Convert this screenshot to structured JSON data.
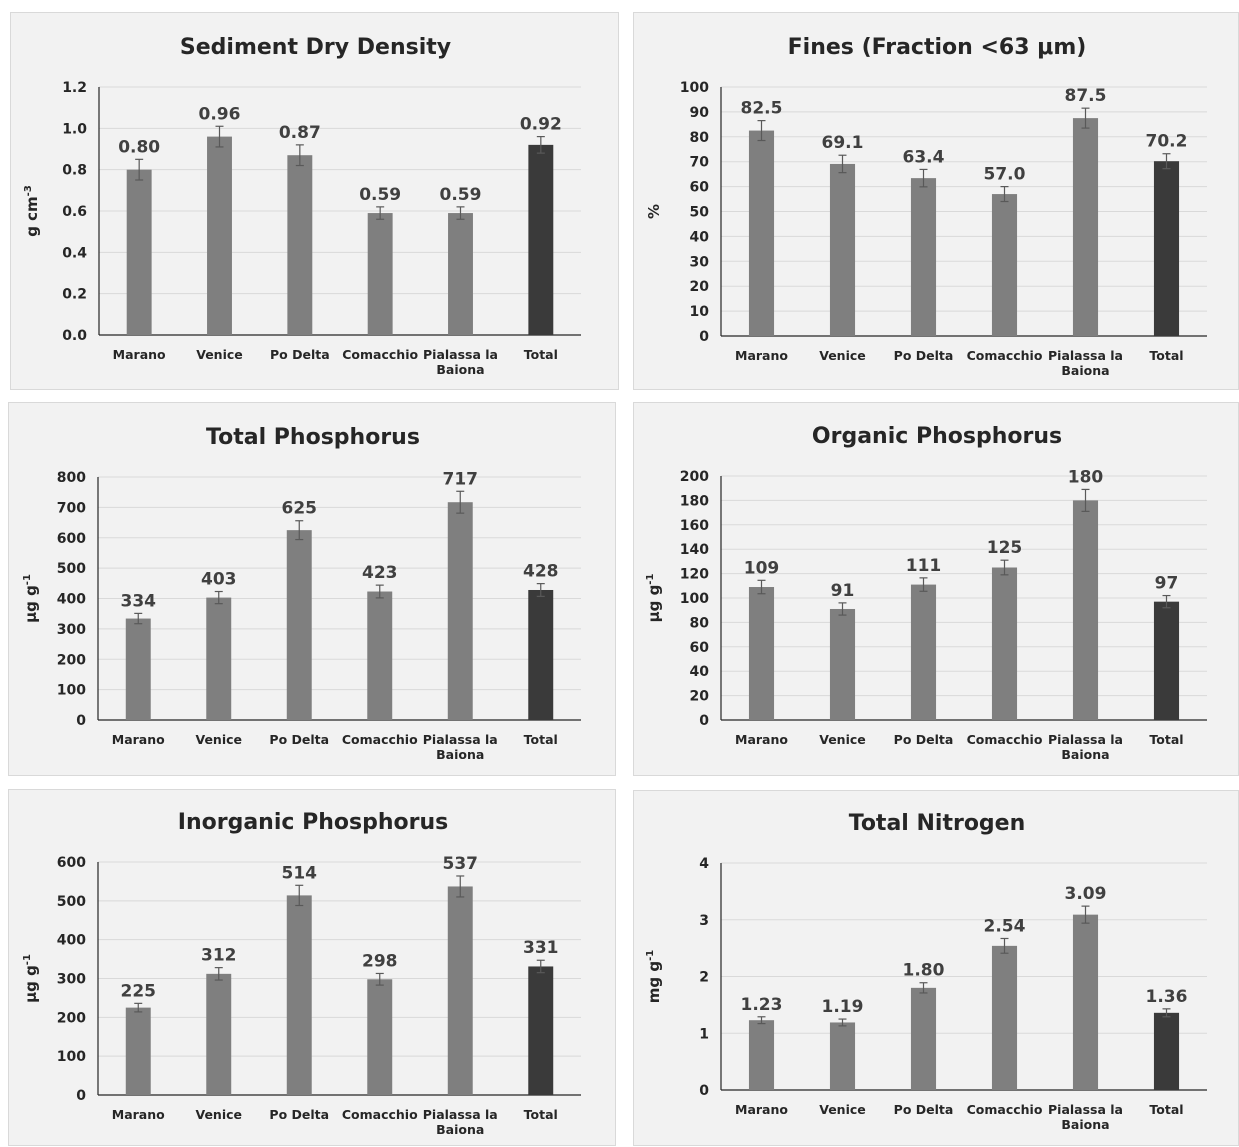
{
  "chart_data": [
    {
      "type": "bar",
      "title": "Sediment Dry Density",
      "ylabel": "g cm",
      "ylabel_sup": "-3",
      "categories": [
        [
          "Marano"
        ],
        [
          "Venice"
        ],
        [
          "Po Delta"
        ],
        [
          "Comacchio"
        ],
        [
          "Pialassa la",
          "Baiona"
        ],
        [
          "Total"
        ]
      ],
      "values": [
        0.8,
        0.96,
        0.87,
        0.59,
        0.59,
        0.92
      ],
      "value_labels": [
        "0.80",
        "0.96",
        "0.87",
        "0.59",
        "0.59",
        "0.92"
      ],
      "errors": [
        0.05,
        0.05,
        0.05,
        0.03,
        0.03,
        0.04
      ],
      "ylim": [
        0,
        1.2
      ],
      "yticks": [
        0.0,
        0.2,
        0.4,
        0.6,
        0.8,
        1.0,
        1.2
      ],
      "ytick_labels": [
        "0.0",
        "0.2",
        "0.4",
        "0.6",
        "0.8",
        "1.0",
        "1.2"
      ],
      "grid": true,
      "colors": [
        "#7f7f7f",
        "#7f7f7f",
        "#7f7f7f",
        "#7f7f7f",
        "#7f7f7f",
        "#3a3a3a"
      ]
    },
    {
      "type": "bar",
      "title": "Fines (Fraction <63 μm)",
      "ylabel": "%",
      "ylabel_sup": "",
      "categories": [
        [
          "Marano"
        ],
        [
          "Venice"
        ],
        [
          "Po Delta"
        ],
        [
          "Comacchio"
        ],
        [
          "Pialassa la",
          "Baiona"
        ],
        [
          "Total"
        ]
      ],
      "values": [
        82.5,
        69.1,
        63.4,
        57.0,
        87.5,
        70.2
      ],
      "value_labels": [
        "82.5",
        "69.1",
        "63.4",
        "57.0",
        "87.5",
        "70.2"
      ],
      "errors": [
        4,
        3.5,
        3.5,
        3,
        4,
        3
      ],
      "ylim": [
        0,
        100
      ],
      "yticks": [
        0,
        10,
        20,
        30,
        40,
        50,
        60,
        70,
        80,
        90,
        100
      ],
      "ytick_labels": [
        "0",
        "10",
        "20",
        "30",
        "40",
        "50",
        "60",
        "70",
        "80",
        "90",
        "100"
      ],
      "grid": true,
      "colors": [
        "#7f7f7f",
        "#7f7f7f",
        "#7f7f7f",
        "#7f7f7f",
        "#7f7f7f",
        "#3a3a3a"
      ]
    },
    {
      "type": "bar",
      "title": "Total Phosphorus",
      "ylabel": "μg g",
      "ylabel_sup": "-1",
      "categories": [
        [
          "Marano"
        ],
        [
          "Venice"
        ],
        [
          "Po Delta"
        ],
        [
          "Comacchio"
        ],
        [
          "Pialassa la",
          "Baiona"
        ],
        [
          "Total"
        ]
      ],
      "values": [
        334,
        403,
        625,
        423,
        717,
        428
      ],
      "value_labels": [
        "334",
        "403",
        "625",
        "423",
        "717",
        "428"
      ],
      "errors": [
        17,
        20,
        31,
        21,
        36,
        21
      ],
      "ylim": [
        0,
        800
      ],
      "yticks": [
        0,
        100,
        200,
        300,
        400,
        500,
        600,
        700,
        800
      ],
      "ytick_labels": [
        "0",
        "100",
        "200",
        "300",
        "400",
        "500",
        "600",
        "700",
        "800"
      ],
      "grid": true,
      "colors": [
        "#7f7f7f",
        "#7f7f7f",
        "#7f7f7f",
        "#7f7f7f",
        "#7f7f7f",
        "#3a3a3a"
      ]
    },
    {
      "type": "bar",
      "title": "Organic Phosphorus",
      "ylabel": "μg g",
      "ylabel_sup": "-1",
      "categories": [
        [
          "Marano"
        ],
        [
          "Venice"
        ],
        [
          "Po Delta"
        ],
        [
          "Comacchio"
        ],
        [
          "Pialassa la",
          "Baiona"
        ],
        [
          "Total"
        ]
      ],
      "values": [
        109,
        91,
        111,
        125,
        180,
        97
      ],
      "value_labels": [
        "109",
        "91",
        "111",
        "125",
        "180",
        "97"
      ],
      "errors": [
        5.5,
        5,
        5.5,
        6,
        9,
        5
      ],
      "ylim": [
        0,
        200
      ],
      "yticks": [
        0,
        20,
        40,
        60,
        80,
        100,
        120,
        140,
        160,
        180,
        200
      ],
      "ytick_labels": [
        "0",
        "20",
        "40",
        "60",
        "80",
        "100",
        "120",
        "140",
        "160",
        "180",
        "200"
      ],
      "grid": true,
      "colors": [
        "#7f7f7f",
        "#7f7f7f",
        "#7f7f7f",
        "#7f7f7f",
        "#7f7f7f",
        "#3a3a3a"
      ]
    },
    {
      "type": "bar",
      "title": "Inorganic Phosphorus",
      "ylabel": "μg g",
      "ylabel_sup": "-1",
      "categories": [
        [
          "Marano"
        ],
        [
          "Venice"
        ],
        [
          "Po Delta"
        ],
        [
          "Comacchio"
        ],
        [
          "Pialassa la",
          "Baiona"
        ],
        [
          "Total"
        ]
      ],
      "values": [
        225,
        312,
        514,
        298,
        537,
        331
      ],
      "value_labels": [
        "225",
        "312",
        "514",
        "298",
        "537",
        "331"
      ],
      "errors": [
        11,
        16,
        26,
        15,
        27,
        16
      ],
      "ylim": [
        0,
        600
      ],
      "yticks": [
        0,
        100,
        200,
        300,
        400,
        500,
        600
      ],
      "ytick_labels": [
        "0",
        "100",
        "200",
        "300",
        "400",
        "500",
        "600"
      ],
      "grid": true,
      "colors": [
        "#7f7f7f",
        "#7f7f7f",
        "#7f7f7f",
        "#7f7f7f",
        "#7f7f7f",
        "#3a3a3a"
      ]
    },
    {
      "type": "bar",
      "title": "Total Nitrogen",
      "ylabel": "mg g",
      "ylabel_sup": "-1",
      "categories": [
        [
          "Marano"
        ],
        [
          "Venice"
        ],
        [
          "Po Delta"
        ],
        [
          "Comacchio"
        ],
        [
          "Pialassa la",
          "Baiona"
        ],
        [
          "Total"
        ]
      ],
      "values": [
        1.23,
        1.19,
        1.8,
        2.54,
        3.09,
        1.36
      ],
      "value_labels": [
        "1.23",
        "1.19",
        "1.80",
        "2.54",
        "3.09",
        "1.36"
      ],
      "errors": [
        0.06,
        0.06,
        0.09,
        0.13,
        0.15,
        0.07
      ],
      "ylim": [
        0,
        4
      ],
      "yticks": [
        0,
        1,
        2,
        3,
        4
      ],
      "ytick_labels": [
        "0",
        "1",
        "2",
        "3",
        "4"
      ],
      "grid": true,
      "colors": [
        "#7f7f7f",
        "#7f7f7f",
        "#7f7f7f",
        "#7f7f7f",
        "#7f7f7f",
        "#3a3a3a"
      ]
    }
  ]
}
